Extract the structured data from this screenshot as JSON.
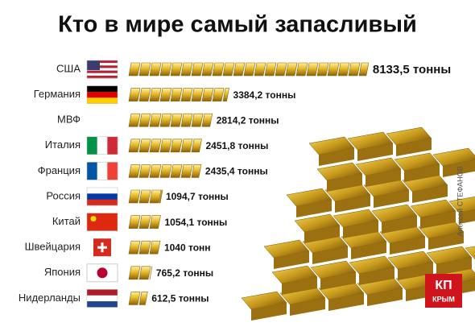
{
  "chart_data": {
    "type": "bar",
    "orientation": "horizontal",
    "title": "Кто в мире самый запасливый",
    "categories": [
      "США",
      "Германия",
      "МВФ",
      "Италия",
      "Франция",
      "Россия",
      "Китай",
      "Швейцария",
      "Япония",
      "Нидерланды"
    ],
    "values": [
      8133.5,
      3384.2,
      2814.2,
      2451.8,
      2435.4,
      1094.7,
      1054.1,
      1040,
      765.2,
      612.5
    ],
    "value_labels": [
      "8133,5 тонны",
      "3384,2 тонны",
      "2814,2 тонны",
      "2451,8 тонны",
      "2435,4 тонны",
      "1094,7 тонны",
      "1054,1 тонны",
      "1040 тонн",
      "765,2 тонны",
      "612,5 тонны"
    ],
    "color": "#e0b520",
    "credit": "Алексей СТЕФАНОВ",
    "logo": [
      "КП",
      "КРЫМ"
    ]
  }
}
